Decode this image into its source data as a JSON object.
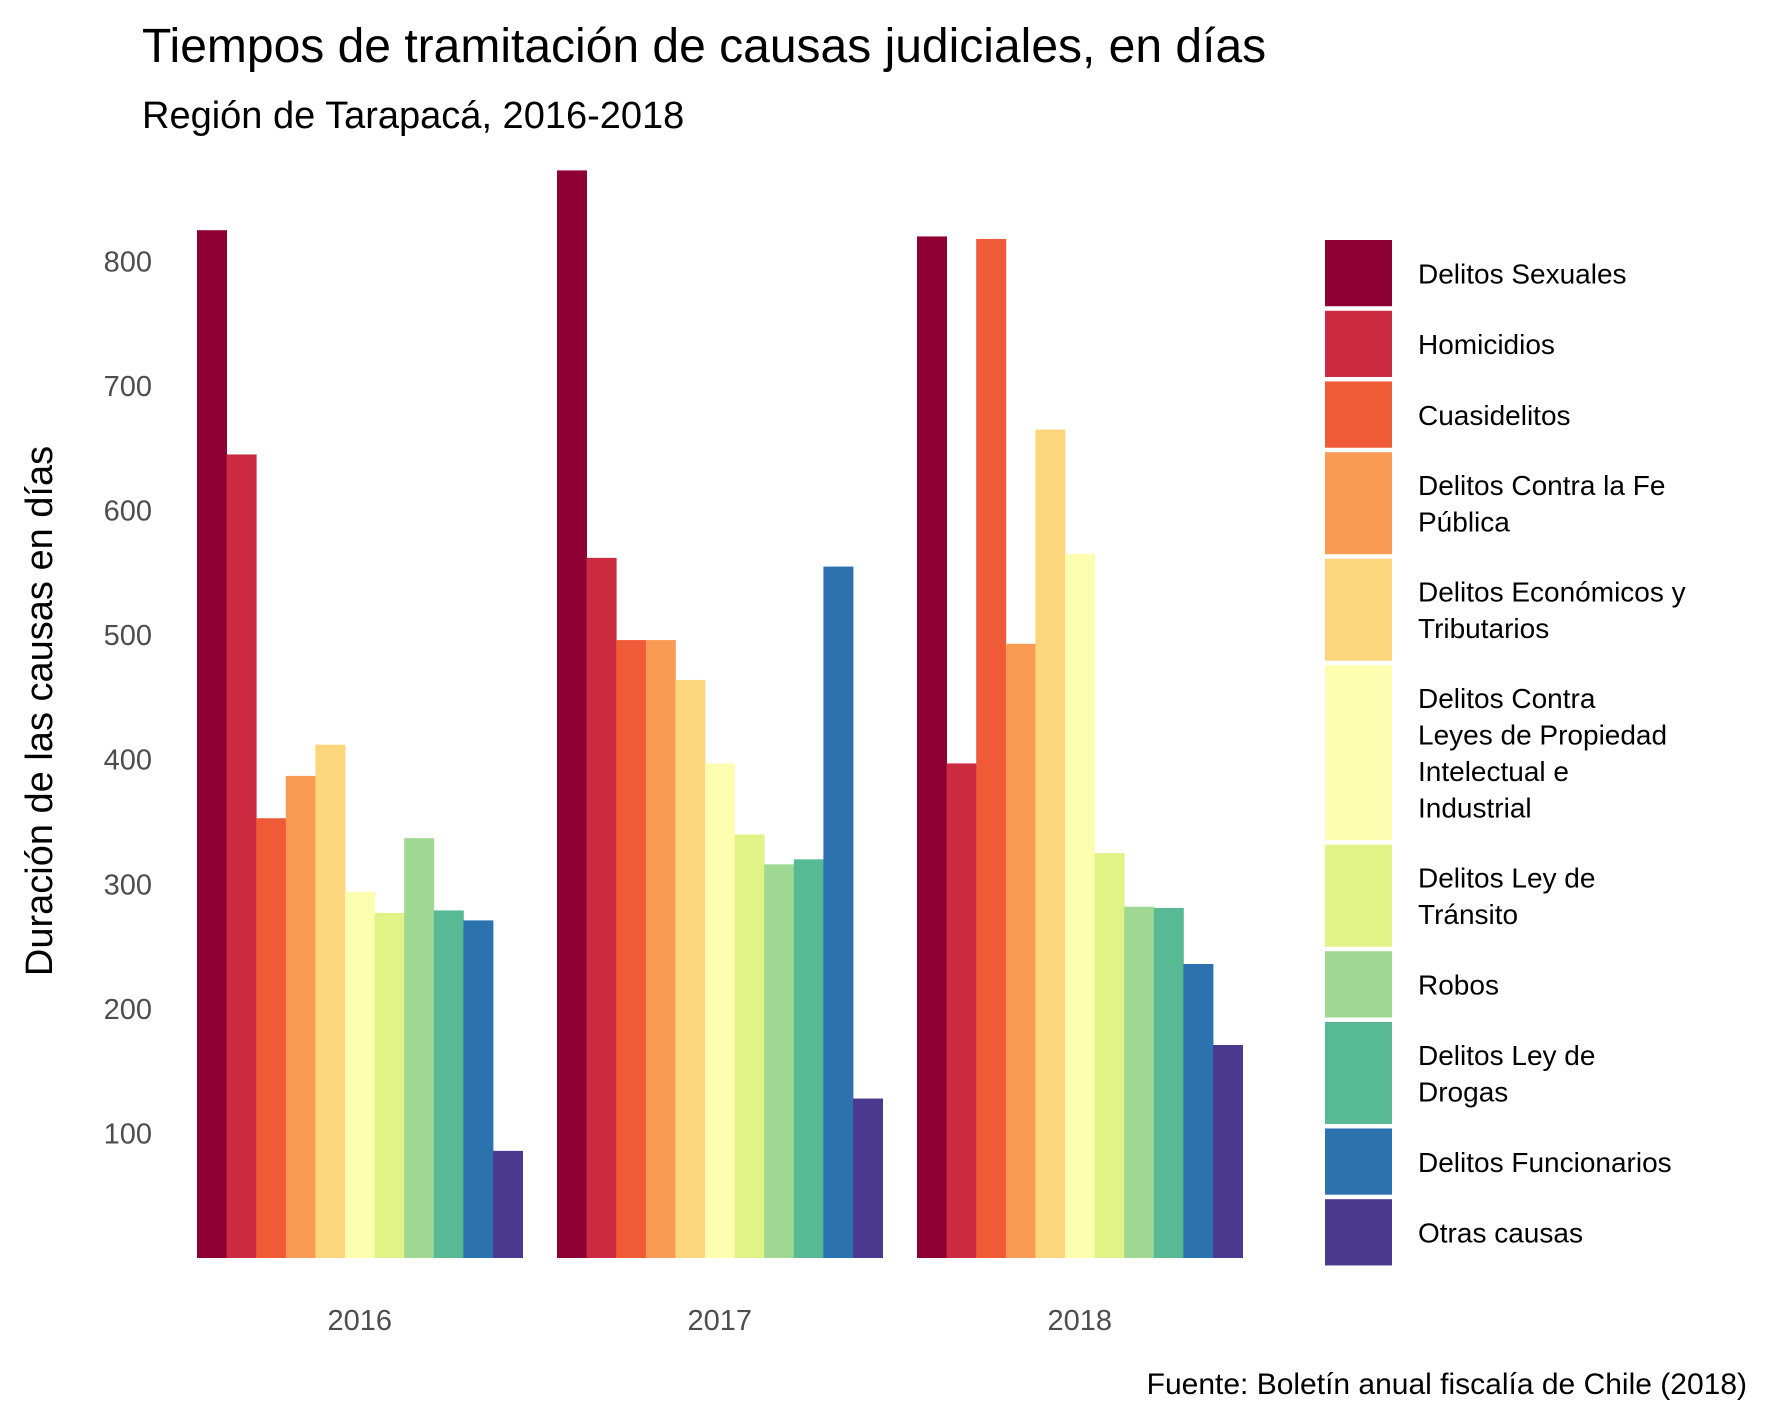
{
  "chart_data": {
    "type": "bar",
    "title": "Tiempos de tramitación de causas judiciales, en días",
    "subtitle": "Región de Tarapacá, 2016-2018",
    "xlabel": "",
    "ylabel": "Duración de las causas en días",
    "caption": "Fuente: Boletín anual fiscalía de Chile (2018)",
    "categories": [
      "2016",
      "2017",
      "2018"
    ],
    "ylim": [
      0,
      875
    ],
    "yticks": [
      100,
      200,
      300,
      400,
      500,
      600,
      700,
      800
    ],
    "grid": false,
    "legend_position": "right",
    "series": [
      {
        "name": "Delitos Sexuales",
        "legend_lines": [
          "Delitos Sexuales"
        ],
        "color": "#8e0034",
        "values": [
          825,
          873,
          820
        ]
      },
      {
        "name": "Homicidios",
        "legend_lines": [
          "Homicidios"
        ],
        "color": "#cb2a41",
        "values": [
          645,
          562,
          397
        ]
      },
      {
        "name": "Cuasidelitos",
        "legend_lines": [
          "Cuasidelitos"
        ],
        "color": "#ef5a37",
        "values": [
          353,
          496,
          818
        ]
      },
      {
        "name": "Delitos Contra la Fe Pública",
        "legend_lines": [
          "Delitos Contra la Fe",
          "Pública"
        ],
        "color": "#f99b52",
        "values": [
          387,
          496,
          493
        ]
      },
      {
        "name": "Delitos Económicos y Tributarios",
        "legend_lines": [
          "Delitos Económicos y",
          "Tributarios"
        ],
        "color": "#fcd57d",
        "values": [
          412,
          464,
          665
        ]
      },
      {
        "name": "Delitos Contra Leyes de Propiedad Intelectual e Industrial",
        "legend_lines": [
          "Delitos Contra",
          "Leyes de Propiedad",
          "Intelectual e",
          "Industrial"
        ],
        "color": "#fefeb0",
        "values": [
          294,
          397,
          565
        ]
      },
      {
        "name": "Delitos Ley de Tránsito",
        "legend_lines": [
          "Delitos Ley de",
          "Tránsito"
        ],
        "color": "#e1f387",
        "values": [
          277,
          340,
          325
        ]
      },
      {
        "name": "Robos",
        "legend_lines": [
          "Robos"
        ],
        "color": "#9fd892",
        "values": [
          337,
          316,
          282
        ]
      },
      {
        "name": "Delitos Ley de Drogas",
        "legend_lines": [
          "Delitos Ley de",
          "Drogas"
        ],
        "color": "#57ba94",
        "values": [
          279,
          320,
          281
        ]
      },
      {
        "name": "Delitos Funcionarios",
        "legend_lines": [
          "Delitos Funcionarios"
        ],
        "color": "#2c72ae",
        "values": [
          271,
          555,
          236
        ]
      },
      {
        "name": "Otras causas",
        "legend_lines": [
          "Otras causas"
        ],
        "color": "#4b388f",
        "values": [
          86,
          128,
          171
        ]
      }
    ]
  }
}
